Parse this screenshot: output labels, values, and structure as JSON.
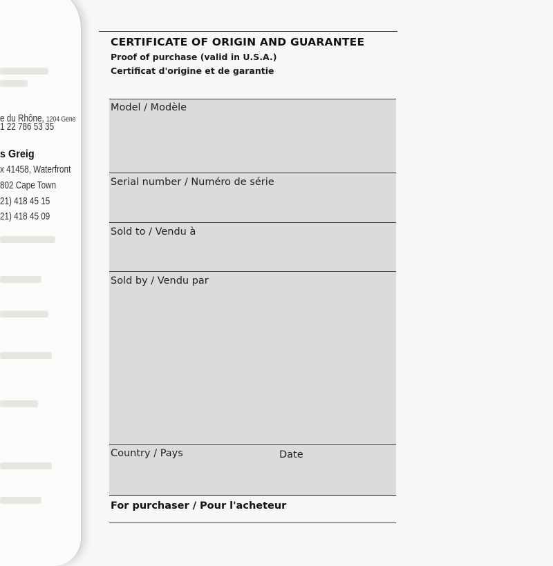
{
  "left_page": {
    "lines": [
      "e du Rhône,",
      "1204 Gene",
      "1  22 786 53 35",
      "s Greig",
      "x 41458, Waterfront",
      "802 Cape Town",
      "21) 418 45 15",
      "21) 418 45 09"
    ]
  },
  "certificate": {
    "title": "CERTIFICATE OF ORIGIN AND GUARANTEE",
    "subtitle_en": "Proof of purchase (valid in U.S.A.)",
    "subtitle_fr": "Certificat d'origine et de garantie",
    "fields": {
      "model": "Model / Modèle",
      "serial": "Serial number / Numéro de série",
      "sold_to": "Sold to / Vendu à",
      "sold_by": "Sold by / Vendu par",
      "country": "Country / Pays",
      "date": "Date"
    },
    "footer": "For purchaser / Pour l'acheteur",
    "field_color": "#d9dbdc"
  }
}
